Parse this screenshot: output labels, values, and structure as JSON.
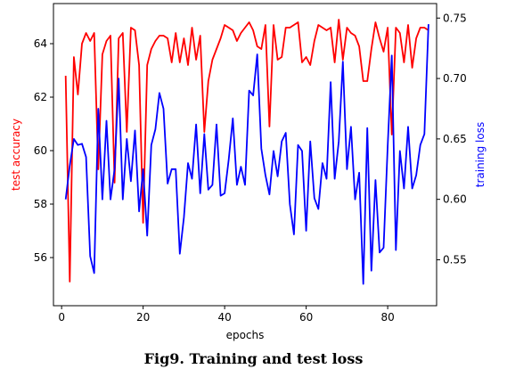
{
  "caption": "Fig9. Training and test loss",
  "chart_data": {
    "type": "line",
    "xlabel": "epochs",
    "ylabel_left": "test accuracy",
    "ylabel_right": "training loss",
    "xlim": [
      -2,
      92
    ],
    "ylim_left": [
      54.2,
      65.5
    ],
    "ylim_right": [
      0.512,
      0.762
    ],
    "x_ticks": [
      0,
      20,
      40,
      60,
      80
    ],
    "y_ticks_left": [
      56,
      58,
      60,
      62,
      64
    ],
    "y_ticks_right": [
      0.55,
      0.6,
      0.65,
      0.7,
      0.75
    ],
    "y_ticks_right_labels": [
      "0.55",
      "0.60",
      "0.65",
      "0.70",
      "0.75"
    ],
    "grid": false,
    "colors": {
      "test_accuracy": "#ff0000",
      "training_loss": "#0000ff",
      "axis": "#000000",
      "left_label": "#ff0000",
      "right_label": "#0000ff"
    },
    "series": [
      {
        "name": "test accuracy",
        "axis": "left",
        "x": [
          1,
          2,
          3,
          4,
          5,
          6,
          7,
          8,
          9,
          10,
          11,
          12,
          13,
          14,
          15,
          16,
          17,
          18,
          19,
          20,
          21,
          22,
          23,
          24,
          25,
          26,
          27,
          28,
          29,
          30,
          31,
          32,
          33,
          34,
          35,
          36,
          37,
          38,
          39,
          40,
          41,
          42,
          43,
          44,
          45,
          46,
          47,
          48,
          49,
          50,
          51,
          52,
          53,
          54,
          55,
          56,
          57,
          58,
          59,
          60,
          61,
          62,
          63,
          64,
          65,
          66,
          67,
          68,
          69,
          70,
          71,
          72,
          73,
          74,
          75,
          76,
          77,
          78,
          79,
          80,
          81,
          82,
          83,
          84,
          85,
          86,
          87,
          88,
          89,
          90
        ],
        "values": [
          62.8,
          55.1,
          63.5,
          62.1,
          64.0,
          64.4,
          64.1,
          64.4,
          59.3,
          63.6,
          64.1,
          64.3,
          58.8,
          64.2,
          64.4,
          60.7,
          64.6,
          64.5,
          63.2,
          57.3,
          63.2,
          63.8,
          64.1,
          64.3,
          64.3,
          64.2,
          63.3,
          64.4,
          63.3,
          64.2,
          63.2,
          64.6,
          63.4,
          64.3,
          60.7,
          62.6,
          63.4,
          63.8,
          64.2,
          64.7,
          64.6,
          64.5,
          64.1,
          64.4,
          64.6,
          64.8,
          64.5,
          63.9,
          63.8,
          64.7,
          60.9,
          64.7,
          63.4,
          63.5,
          64.6,
          64.6,
          64.7,
          64.8,
          63.3,
          63.5,
          63.2,
          64.1,
          64.7,
          64.6,
          64.5,
          64.6,
          63.3,
          64.9,
          63.4,
          64.6,
          64.4,
          64.3,
          63.9,
          62.6,
          62.6,
          63.8,
          64.8,
          64.2,
          63.7,
          64.6,
          60.6,
          64.6,
          64.4,
          63.3,
          64.7,
          63.1,
          64.2,
          64.6,
          64.6,
          64.5
        ]
      },
      {
        "name": "training loss",
        "axis": "right",
        "x": [
          1,
          2,
          3,
          4,
          5,
          6,
          7,
          8,
          9,
          10,
          11,
          12,
          13,
          14,
          15,
          16,
          17,
          18,
          19,
          20,
          21,
          22,
          23,
          24,
          25,
          26,
          27,
          28,
          29,
          30,
          31,
          32,
          33,
          34,
          35,
          36,
          37,
          38,
          39,
          40,
          41,
          42,
          43,
          44,
          45,
          46,
          47,
          48,
          49,
          50,
          51,
          52,
          53,
          54,
          55,
          56,
          57,
          58,
          59,
          60,
          61,
          62,
          63,
          64,
          65,
          66,
          67,
          68,
          69,
          70,
          71,
          72,
          73,
          74,
          75,
          76,
          77,
          78,
          79,
          80,
          81,
          82,
          83,
          84,
          85,
          86,
          87,
          88,
          89,
          90
        ],
        "values": [
          0.6,
          0.628,
          0.65,
          0.645,
          0.646,
          0.635,
          0.553,
          0.539,
          0.675,
          0.6,
          0.665,
          0.6,
          0.625,
          0.7,
          0.6,
          0.65,
          0.615,
          0.657,
          0.59,
          0.625,
          0.57,
          0.645,
          0.658,
          0.688,
          0.675,
          0.613,
          0.625,
          0.625,
          0.555,
          0.585,
          0.63,
          0.617,
          0.662,
          0.605,
          0.654,
          0.608,
          0.612,
          0.662,
          0.603,
          0.605,
          0.633,
          0.667,
          0.612,
          0.627,
          0.612,
          0.69,
          0.686,
          0.72,
          0.642,
          0.62,
          0.604,
          0.64,
          0.619,
          0.648,
          0.655,
          0.596,
          0.571,
          0.645,
          0.64,
          0.574,
          0.648,
          0.601,
          0.592,
          0.63,
          0.617,
          0.697,
          0.617,
          0.648,
          0.714,
          0.625,
          0.66,
          0.6,
          0.622,
          0.53,
          0.659,
          0.541,
          0.616,
          0.556,
          0.56,
          0.644,
          0.719,
          0.558,
          0.64,
          0.609,
          0.66,
          0.609,
          0.62,
          0.645,
          0.654,
          0.745
        ]
      }
    ]
  }
}
